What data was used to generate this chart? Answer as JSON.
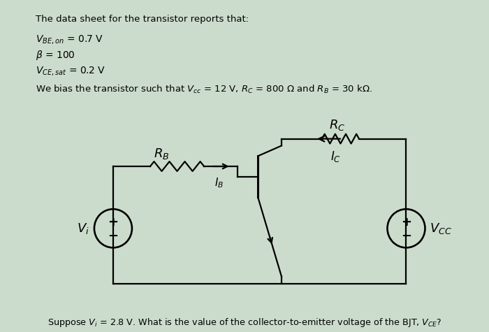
{
  "bg_color": "#ccdccc",
  "title_text": "The data sheet for the transistor reports that:",
  "line1": "$V_{BE,on}$ = 0.7 V",
  "line2": "$\\beta$ = 100",
  "line3": "$V_{CE,sat}$ = 0.2 V",
  "bias_line": "We bias the transistor such that $V_{cc}$ = 12 V, $R_C$ = 800 $\\Omega$ and $R_B$ = 30 k$\\Omega$.",
  "footer": "Suppose $V_i$ = 2.8 V. What is the value of the collector-to-emitter voltage of the BJT, $V_{CE}$?"
}
